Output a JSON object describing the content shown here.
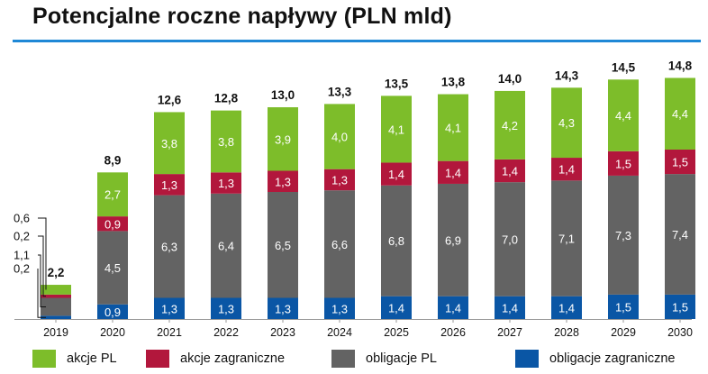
{
  "chart_data": {
    "type": "bar",
    "stacked": true,
    "title": "Potencjalne roczne napływy (PLN mld)",
    "categories": [
      "2019",
      "2020",
      "2021",
      "2022",
      "2023",
      "2024",
      "2025",
      "2026",
      "2027",
      "2028",
      "2029",
      "2030"
    ],
    "totals": [
      "2,2",
      "8,9",
      "12,6",
      "12,8",
      "13,0",
      "13,3",
      "13,5",
      "13,8",
      "14,0",
      "14,3",
      "14,5",
      "14,8"
    ],
    "series": [
      {
        "name": "obligacje zagraniczne",
        "color": "#0a56a5",
        "values": [
          0.2,
          0.9,
          1.3,
          1.3,
          1.3,
          1.3,
          1.4,
          1.4,
          1.4,
          1.4,
          1.5,
          1.5
        ],
        "labels": [
          "0,2",
          "0,9",
          "1,3",
          "1,3",
          "1,3",
          "1,3",
          "1,4",
          "1,4",
          "1,4",
          "1,4",
          "1,5",
          "1,5"
        ]
      },
      {
        "name": "obligacje PL",
        "color": "#636363",
        "values": [
          1.1,
          4.5,
          6.3,
          6.4,
          6.5,
          6.6,
          6.8,
          6.9,
          7.0,
          7.1,
          7.3,
          7.4
        ],
        "labels": [
          "1,1",
          "4,5",
          "6,3",
          "6,4",
          "6,5",
          "6,6",
          "6,8",
          "6,9",
          "7,0",
          "7,1",
          "7,3",
          "7,4"
        ]
      },
      {
        "name": "akcje zagraniczne",
        "color": "#b2173c",
        "values": [
          0.2,
          0.9,
          1.3,
          1.3,
          1.3,
          1.3,
          1.4,
          1.4,
          1.4,
          1.4,
          1.5,
          1.5
        ],
        "labels": [
          "0,2",
          "0,9",
          "1,3",
          "1,3",
          "1,3",
          "1,3",
          "1,4",
          "1,4",
          "1,4",
          "1,4",
          "1,5",
          "1,5"
        ]
      },
      {
        "name": "akcje PL",
        "color": "#7dbd2a",
        "values": [
          0.6,
          2.7,
          3.8,
          3.8,
          3.9,
          4.0,
          4.1,
          4.1,
          4.2,
          4.3,
          4.4,
          4.4
        ],
        "labels": [
          "0,6",
          "2,7",
          "3,8",
          "3,8",
          "3,9",
          "4,0",
          "4,1",
          "4,1",
          "4,2",
          "4,3",
          "4,4",
          "4,4"
        ]
      }
    ],
    "legend_order": [
      "akcje PL",
      "akcje zagraniczne",
      "obligacje PL",
      "obligacje zagraniczne"
    ],
    "legend_position": "bottom",
    "ylim": [
      0,
      15.6
    ],
    "grid": false
  }
}
